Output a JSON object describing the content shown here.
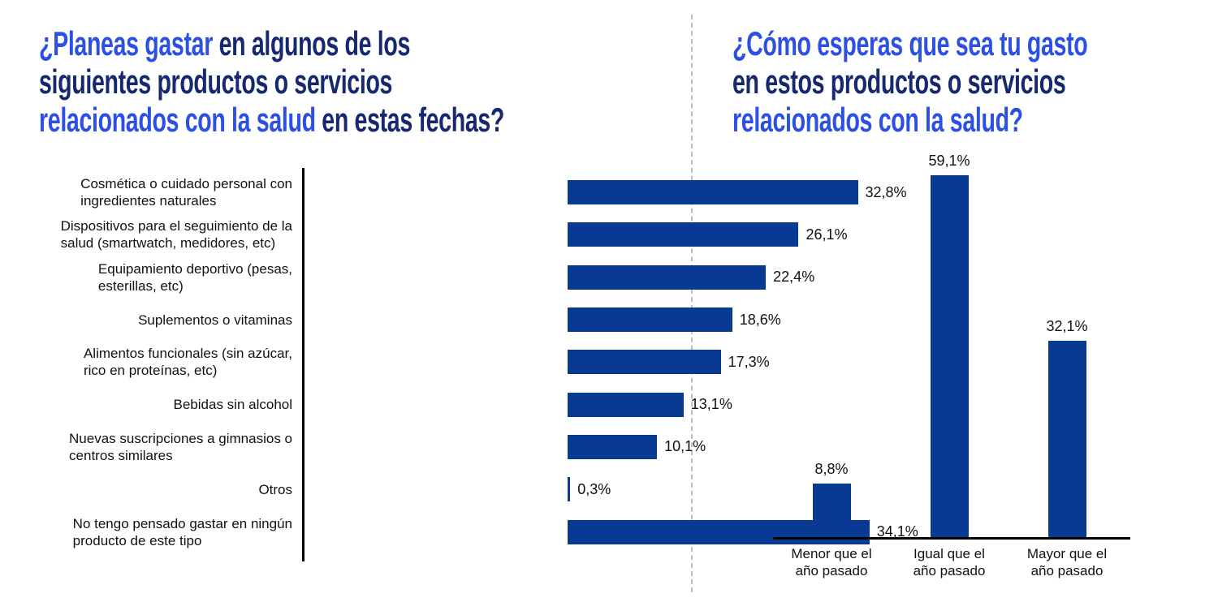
{
  "colors": {
    "accent_blue": "#2C50E1",
    "dark_navy": "#16286E",
    "bar_blue": "#083A93",
    "axis_black": "#000000",
    "divider_gray": "#bdbdbd",
    "text_black": "#111111",
    "background": "#ffffff"
  },
  "chart_data": [
    {
      "type": "bar",
      "orientation": "horizontal",
      "title": "¿Planeas gastar en algunos de los siguientes productos o servicios relacionados con la salud en estas fechas?",
      "title_lines": [
        [
          {
            "text": "¿Planeas gastar",
            "accent": true
          },
          {
            "text": " en algunos de los",
            "accent": false
          }
        ],
        [
          {
            "text": "siguientes productos o servicios",
            "accent": false
          }
        ],
        [
          {
            "text": "relacionados con la salud",
            "accent": true
          },
          {
            "text": " en estas fechas?",
            "accent": false
          }
        ]
      ],
      "categories": [
        "Cosmética o cuidado personal con ingredientes naturales",
        "Dispositivos para el seguimiento de la salud (smartwatch, medidores, etc)",
        "Equipamiento deportivo (pesas, esterillas, etc)",
        "Suplementos o vitaminas",
        "Alimentos funcionales (sin azúcar, rico en proteínas, etc)",
        "Bebidas sin alcohol",
        "Nuevas suscripciones a gimnasios o centros similares",
        "Otros",
        "No tengo pensado gastar en ningún producto de este tipo"
      ],
      "category_lines": [
        [
          "Cosmética o cuidado personal con",
          "ingredientes naturales"
        ],
        [
          "Dispositivos para el seguimiento de la",
          "salud (smartwatch, medidores, etc)"
        ],
        [
          "Equipamiento deportivo (pesas,",
          "esterillas, etc)"
        ],
        [
          "Suplementos o vitaminas"
        ],
        [
          "Alimentos funcionales (sin azúcar,",
          "rico en proteínas, etc)"
        ],
        [
          "Bebidas sin alcohol"
        ],
        [
          "Nuevas suscripciones a gimnasios o",
          "centros similares"
        ],
        [
          "Otros"
        ],
        [
          "No tengo pensado gastar en ningún",
          "producto de este tipo"
        ]
      ],
      "values": [
        32.8,
        26.1,
        22.4,
        18.6,
        17.3,
        13.1,
        10.1,
        0.3,
        34.1
      ],
      "value_labels": [
        "32,8%",
        "26,1%",
        "22,4%",
        "18,6%",
        "17,3%",
        "13,1%",
        "10,1%",
        "0,3%",
        "34,1%"
      ],
      "unit": "%",
      "xlim": [
        0,
        40
      ],
      "grid": false,
      "legend": null
    },
    {
      "type": "bar",
      "orientation": "vertical",
      "title": "¿Cómo esperas que sea tu gasto en estos productos o servicios relacionados con la salud?",
      "title_lines": [
        [
          {
            "text": "¿Cómo esperas que sea tu gasto",
            "accent": true
          }
        ],
        [
          {
            "text": "en estos productos o servicios",
            "accent": false
          }
        ],
        [
          {
            "text": "relacionados con la salud?",
            "accent": true
          }
        ]
      ],
      "categories": [
        "Menor que el año pasado",
        "Igual que el año pasado",
        "Mayor que el año pasado"
      ],
      "category_lines": [
        [
          "Menor que el",
          "año pasado"
        ],
        [
          "Igual que el",
          "año pasado"
        ],
        [
          "Mayor que el",
          "año pasado"
        ]
      ],
      "values": [
        8.8,
        59.1,
        32.1
      ],
      "value_labels": [
        "8,8%",
        "59,1%",
        "32,1%"
      ],
      "unit": "%",
      "ylim": [
        0,
        65
      ],
      "grid": false,
      "legend": null
    }
  ]
}
